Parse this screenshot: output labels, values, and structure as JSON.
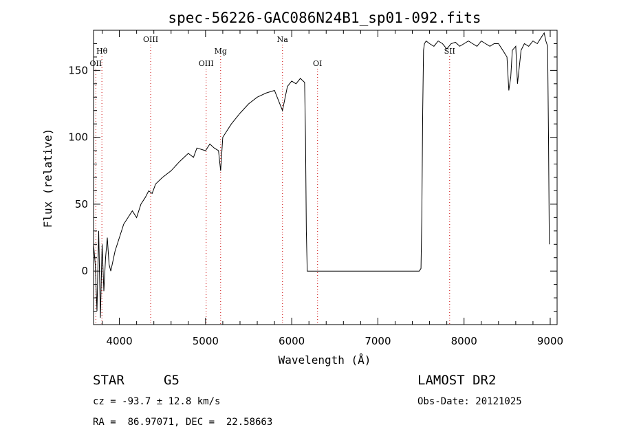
{
  "chart_data": {
    "type": "line",
    "title": "spec-56226-GAC086N24B1_sp01-092.fits",
    "xlabel": "Wavelength (Å)",
    "ylabel": "Flux (relative)",
    "xlim": [
      3700,
      9080
    ],
    "ylim": [
      -40,
      180
    ],
    "xticks": [
      4000,
      5000,
      6000,
      7000,
      8000,
      9000
    ],
    "yticks": [
      0,
      50,
      100,
      150
    ],
    "grid": false,
    "series": [
      {
        "x": [
          3700,
          3720,
          3740,
          3760,
          3780,
          3800,
          3820,
          3840,
          3860,
          3880,
          3900,
          3950,
          4000,
          4050,
          4100,
          4150,
          4200,
          4250,
          4300,
          4340,
          4380,
          4420,
          4500,
          4600,
          4700,
          4800,
          4860,
          4900,
          5000,
          5050,
          5100,
          5150,
          5175,
          5200,
          5300,
          5400,
          5500,
          5600,
          5700,
          5800,
          5893,
          5950,
          6000,
          6050,
          6100,
          6150,
          6160,
          6170,
          6180,
          6200,
          6300,
          6400,
          6500,
          6600,
          6700,
          6800,
          6900,
          7000,
          7100,
          7200,
          7300,
          7400,
          7450,
          7480,
          7500,
          7510,
          7520,
          7530,
          7540,
          7560,
          7600,
          7650,
          7700,
          7750,
          7800,
          7850,
          7900,
          7950,
          8000,
          8050,
          8100,
          8150,
          8200,
          8250,
          8300,
          8350,
          8400,
          8450,
          8498,
          8520,
          8542,
          8560,
          8600,
          8620,
          8662,
          8700,
          8750,
          8800,
          8850,
          8900,
          8930,
          8950,
          8960,
          8970,
          8980,
          8990
        ],
        "y": [
          20,
          5,
          -30,
          30,
          -35,
          20,
          -15,
          10,
          25,
          5,
          0,
          15,
          25,
          35,
          40,
          45,
          40,
          50,
          55,
          60,
          58,
          65,
          70,
          75,
          82,
          88,
          85,
          92,
          90,
          95,
          92,
          90,
          75,
          100,
          110,
          118,
          125,
          130,
          133,
          135,
          120,
          138,
          142,
          140,
          144,
          141,
          100,
          30,
          0,
          0,
          0,
          0,
          0,
          0,
          0,
          0,
          0,
          0,
          0,
          0,
          0,
          0,
          0,
          0,
          2,
          40,
          120,
          165,
          170,
          172,
          170,
          168,
          172,
          170,
          166,
          170,
          171,
          168,
          170,
          172,
          170,
          168,
          172,
          170,
          168,
          170,
          170,
          165,
          160,
          135,
          145,
          165,
          168,
          140,
          165,
          170,
          168,
          172,
          170,
          175,
          178,
          172,
          170,
          168,
          100,
          20
        ]
      }
    ],
    "lines": [
      {
        "label": "Hθ",
        "x": 3797,
        "tier": 1
      },
      {
        "label": "OII",
        "x": 3727,
        "tier": 2
      },
      {
        "label": "OIII",
        "x": 4363,
        "tier": 0
      },
      {
        "label": "OIII",
        "x": 5007,
        "tier": 2
      },
      {
        "label": "Mg",
        "x": 5175,
        "tier": 1
      },
      {
        "label": "Na",
        "x": 5893,
        "tier": 0
      },
      {
        "label": "OI",
        "x": 6300,
        "tier": 2
      },
      {
        "label": "SII",
        "x": 7833,
        "tier": 1
      }
    ]
  },
  "info": {
    "object_class": "STAR",
    "subclass": "G5",
    "survey": "LAMOST DR2",
    "cz": "cz = -93.7 ± 12.8 km/s",
    "obs_date": "Obs-Date: 20121025",
    "radec": "RA =  86.97071, DEC =  22.58663"
  },
  "colors": {
    "spectrum": "#000000",
    "marker": "#cc0000"
  }
}
